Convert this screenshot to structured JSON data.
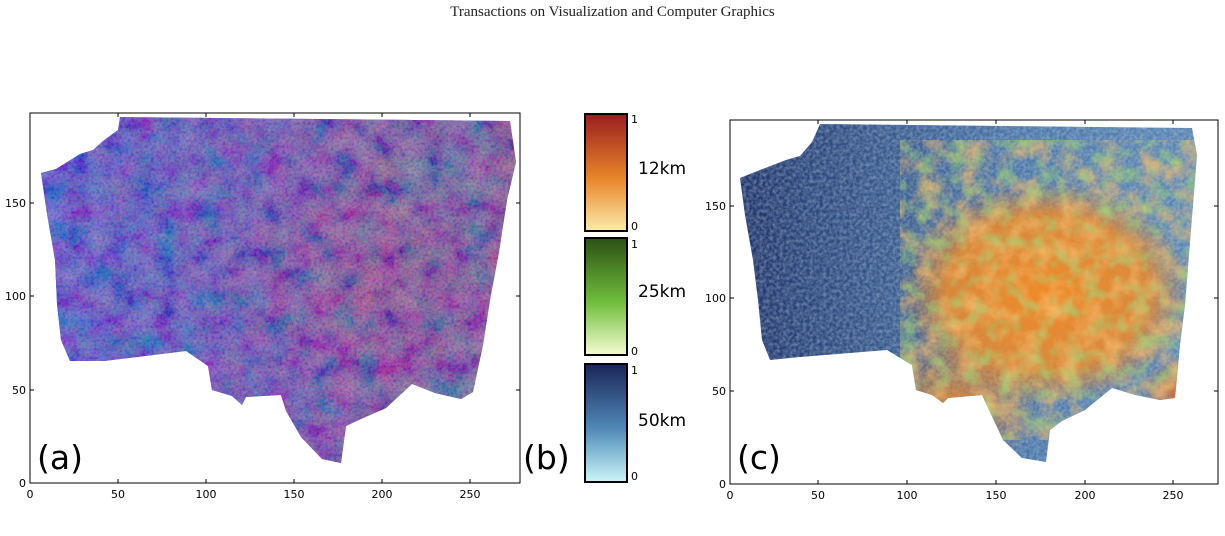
{
  "header": {
    "journal": "Transactions on Visualization and Computer Graphics"
  },
  "panels": {
    "a": {
      "label": "(a)",
      "x_ticks": [
        "0",
        "50",
        "100",
        "150",
        "200",
        "250"
      ],
      "y_ticks": [
        "0",
        "50",
        "100",
        "150"
      ]
    },
    "b": {
      "label": "(b)"
    },
    "c": {
      "label": "(c)",
      "x_ticks": [
        "0",
        "50",
        "100",
        "150",
        "200",
        "250"
      ],
      "y_ticks": [
        "0",
        "50",
        "100",
        "150"
      ]
    }
  },
  "colorbars": [
    {
      "title": "12km",
      "max": "1",
      "min": "0",
      "top_color": "#9b1f1f",
      "mid_color": "#e8852a",
      "bottom_color": "#fbe9a8"
    },
    {
      "title": "25km",
      "max": "1",
      "min": "0",
      "top_color": "#2d5216",
      "mid_color": "#6fbe3c",
      "bottom_color": "#f4fbcf"
    },
    {
      "title": "50km",
      "max": "1",
      "min": "0",
      "top_color": "#1c2659",
      "mid_color": "#4f8ab8",
      "bottom_color": "#c9f3f7"
    }
  ]
}
